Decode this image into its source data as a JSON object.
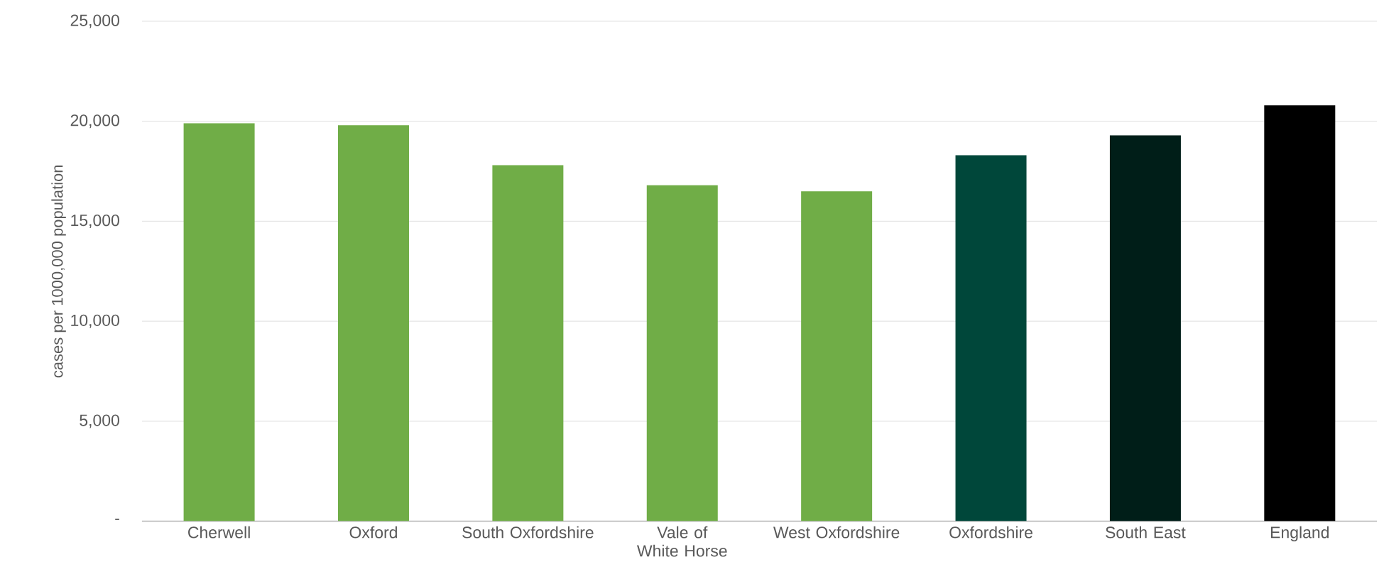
{
  "chart_data": {
    "type": "bar",
    "ylabel": "cases per 1000,000 population",
    "categories": [
      "Cherwell",
      "Oxford",
      "South Oxfordshire",
      "Vale of White Horse",
      "West Oxfordshire",
      "Oxfordshire",
      "South East",
      "England"
    ],
    "values": [
      19900,
      19800,
      17800,
      16800,
      16500,
      18300,
      19300,
      20800
    ],
    "colors": [
      "#70ad47",
      "#70ad47",
      "#70ad47",
      "#70ad47",
      "#70ad47",
      "#00473a",
      "#001e18",
      "#000000"
    ],
    "ylim": [
      0,
      25000
    ],
    "yticks": [
      {
        "value": 0,
        "label": "-"
      },
      {
        "value": 5000,
        "label": "5,000"
      },
      {
        "value": 10000,
        "label": "10,000"
      },
      {
        "value": 15000,
        "label": "15,000"
      },
      {
        "value": 20000,
        "label": "20,000"
      },
      {
        "value": 25000,
        "label": "25,000"
      }
    ],
    "grid": "y"
  }
}
